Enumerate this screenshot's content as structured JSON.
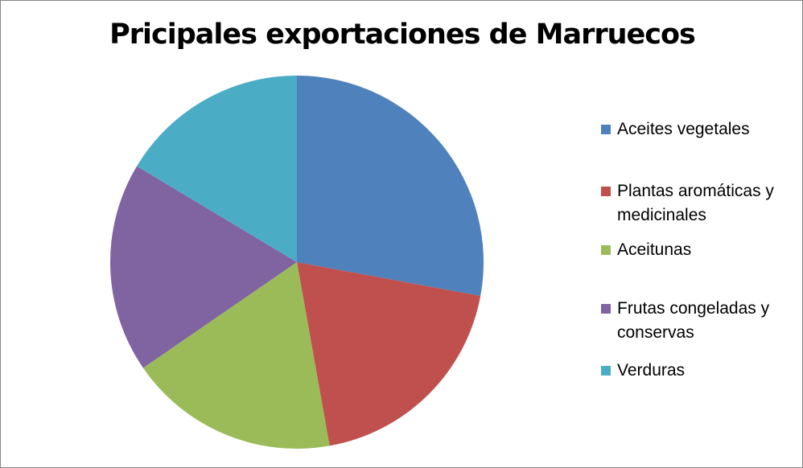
{
  "chart_data": {
    "type": "pie",
    "title": "Pricipales exportaciones de Marruecos",
    "categories": [
      "Aceites vegetales",
      "Plantas aromáticas y medicinales",
      "Aceitunas",
      "Frutas congeladas y conservas",
      "Verduras"
    ],
    "values": [
      27.9,
      19.3,
      18.2,
      18.2,
      16.4
    ],
    "colors": [
      "#4F81BD",
      "#C0504D",
      "#9BBB59",
      "#8064A2",
      "#4BACC6"
    ],
    "start_angle": "12 o'clock",
    "direction": "clockwise",
    "legend_position": "right"
  }
}
